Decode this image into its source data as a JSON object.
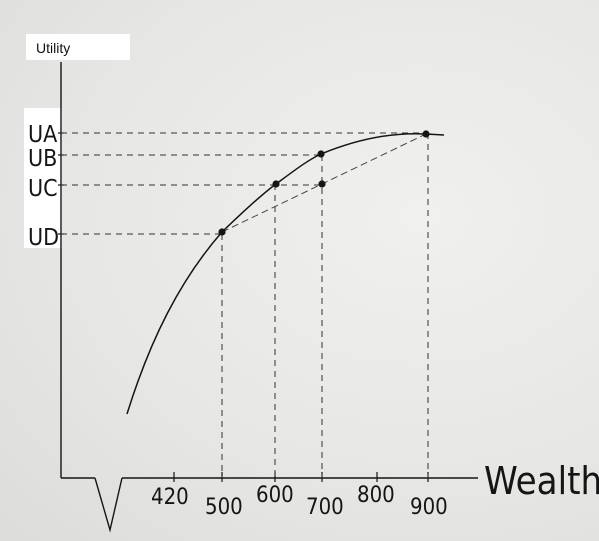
{
  "diagram": {
    "y_axis_label": "Utility",
    "x_axis_label": "Wealth",
    "utility_levels": [
      {
        "id": "A",
        "label": "UA"
      },
      {
        "id": "B",
        "label": "UB"
      },
      {
        "id": "C",
        "label": "UC"
      },
      {
        "id": "D",
        "label": "UD"
      }
    ],
    "wealth_ticks": [
      "420",
      "500",
      "600",
      "700",
      "800",
      "900"
    ],
    "colors": {
      "ink": "#151515",
      "guide": "#333333",
      "paper": "#ecece9"
    }
  }
}
